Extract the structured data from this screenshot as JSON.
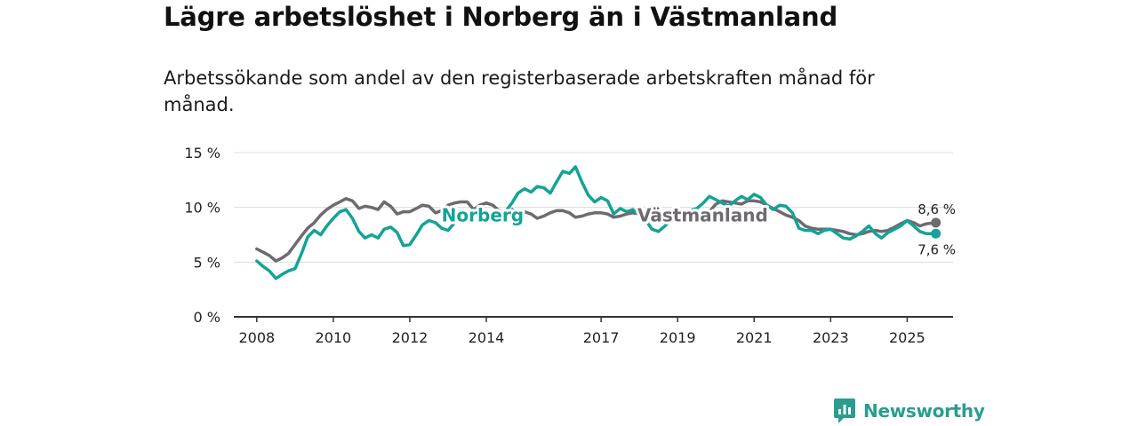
{
  "title": "Lägre arbetslöshet i Norberg än i Västmanland",
  "subtitle": "Arbetssökande som andel av den registerbaserade arbetskraften månad för månad.",
  "brand": {
    "name": "Newsworthy",
    "icon": "newsworthy-logo-icon",
    "color": "#2a9d8f"
  },
  "chart_data": {
    "type": "line",
    "title": "Lägre arbetslöshet i Norberg än i Västmanland",
    "xlabel": "",
    "ylabel": "",
    "xlim": [
      2007.4,
      2026.2
    ],
    "ylim": [
      0,
      15
    ],
    "y_ticks": [
      0,
      5,
      10,
      15
    ],
    "y_tick_labels": [
      "0 %",
      "5 %",
      "10 %",
      "15 %"
    ],
    "x_ticks": [
      2008,
      2010,
      2012,
      2014,
      2017,
      2019,
      2021,
      2023,
      2025
    ],
    "x_tick_labels": [
      "2008",
      "2010",
      "2012",
      "2014",
      "2017",
      "2019",
      "2021",
      "2023",
      "2025"
    ],
    "grid": true,
    "series": [
      {
        "name": "Västmanland",
        "color": "#6e6a70",
        "label": "Västmanland",
        "end_label": "8,6 %",
        "points": [
          [
            2008.0,
            6.2
          ],
          [
            2008.17,
            5.9
          ],
          [
            2008.33,
            5.6
          ],
          [
            2008.5,
            5.1
          ],
          [
            2008.67,
            5.4
          ],
          [
            2008.83,
            5.8
          ],
          [
            2009.0,
            6.6
          ],
          [
            2009.17,
            7.4
          ],
          [
            2009.33,
            8.1
          ],
          [
            2009.5,
            8.6
          ],
          [
            2009.67,
            9.3
          ],
          [
            2009.83,
            9.8
          ],
          [
            2010.0,
            10.2
          ],
          [
            2010.17,
            10.5
          ],
          [
            2010.33,
            10.8
          ],
          [
            2010.5,
            10.6
          ],
          [
            2010.67,
            9.9
          ],
          [
            2010.83,
            10.1
          ],
          [
            2011.0,
            10.0
          ],
          [
            2011.17,
            9.8
          ],
          [
            2011.33,
            10.5
          ],
          [
            2011.5,
            10.1
          ],
          [
            2011.67,
            9.4
          ],
          [
            2011.83,
            9.6
          ],
          [
            2012.0,
            9.6
          ],
          [
            2012.17,
            9.9
          ],
          [
            2012.33,
            10.2
          ],
          [
            2012.5,
            10.1
          ],
          [
            2012.67,
            9.5
          ],
          [
            2012.83,
            9.7
          ],
          [
            2013.0,
            10.2
          ],
          [
            2013.17,
            10.4
          ],
          [
            2013.33,
            10.5
          ],
          [
            2013.5,
            10.5
          ],
          [
            2013.67,
            9.8
          ],
          [
            2013.83,
            10.2
          ],
          [
            2014.0,
            10.4
          ],
          [
            2014.17,
            10.2
          ],
          [
            2014.33,
            9.7
          ],
          [
            2014.5,
            9.5
          ],
          [
            2014.67,
            9.8
          ],
          [
            2014.83,
            9.6
          ],
          [
            2015.0,
            9.6
          ],
          [
            2015.17,
            9.4
          ],
          [
            2015.33,
            9.0
          ],
          [
            2015.5,
            9.2
          ],
          [
            2015.67,
            9.5
          ],
          [
            2015.83,
            9.7
          ],
          [
            2016.0,
            9.7
          ],
          [
            2016.17,
            9.5
          ],
          [
            2016.33,
            9.1
          ],
          [
            2016.5,
            9.2
          ],
          [
            2016.67,
            9.4
          ],
          [
            2016.83,
            9.5
          ],
          [
            2017.0,
            9.5
          ],
          [
            2017.17,
            9.4
          ],
          [
            2017.33,
            9.1
          ],
          [
            2017.5,
            9.2
          ],
          [
            2017.67,
            9.4
          ],
          [
            2017.83,
            9.5
          ],
          [
            2018.0,
            9.4
          ],
          [
            2018.17,
            9.2
          ],
          [
            2018.33,
            9.0
          ],
          [
            2018.5,
            8.9
          ],
          [
            2018.67,
            8.8
          ],
          [
            2018.83,
            8.8
          ],
          [
            2019.0,
            8.9
          ],
          [
            2019.17,
            8.8
          ],
          [
            2019.33,
            8.6
          ],
          [
            2019.5,
            8.7
          ],
          [
            2019.67,
            9.1
          ],
          [
            2019.83,
            9.6
          ],
          [
            2020.0,
            10.3
          ],
          [
            2020.17,
            10.6
          ],
          [
            2020.33,
            10.5
          ],
          [
            2020.5,
            10.4
          ],
          [
            2020.67,
            10.3
          ],
          [
            2020.83,
            10.6
          ],
          [
            2021.0,
            10.6
          ],
          [
            2021.17,
            10.5
          ],
          [
            2021.33,
            10.2
          ],
          [
            2021.5,
            9.9
          ],
          [
            2021.67,
            9.6
          ],
          [
            2021.83,
            9.3
          ],
          [
            2022.0,
            9.1
          ],
          [
            2022.17,
            8.8
          ],
          [
            2022.33,
            8.3
          ],
          [
            2022.5,
            8.1
          ],
          [
            2022.67,
            8.0
          ],
          [
            2022.83,
            8.0
          ],
          [
            2023.0,
            8.0
          ],
          [
            2023.17,
            7.9
          ],
          [
            2023.33,
            7.8
          ],
          [
            2023.5,
            7.6
          ],
          [
            2023.67,
            7.5
          ],
          [
            2023.83,
            7.6
          ],
          [
            2024.0,
            7.8
          ],
          [
            2024.17,
            7.9
          ],
          [
            2024.33,
            7.8
          ],
          [
            2024.5,
            7.9
          ],
          [
            2024.67,
            8.2
          ],
          [
            2024.83,
            8.5
          ],
          [
            2025.0,
            8.8
          ],
          [
            2025.17,
            8.6
          ],
          [
            2025.33,
            8.3
          ],
          [
            2025.5,
            8.5
          ],
          [
            2025.75,
            8.6
          ]
        ]
      },
      {
        "name": "Norberg",
        "color": "#14a396",
        "label": "Norberg",
        "end_label": "7,6 %",
        "points": [
          [
            2008.0,
            5.1
          ],
          [
            2008.17,
            4.6
          ],
          [
            2008.33,
            4.2
          ],
          [
            2008.5,
            3.5
          ],
          [
            2008.67,
            3.9
          ],
          [
            2008.83,
            4.2
          ],
          [
            2009.0,
            4.4
          ],
          [
            2009.17,
            5.8
          ],
          [
            2009.33,
            7.3
          ],
          [
            2009.5,
            7.9
          ],
          [
            2009.67,
            7.5
          ],
          [
            2009.83,
            8.3
          ],
          [
            2010.0,
            9.0
          ],
          [
            2010.17,
            9.6
          ],
          [
            2010.33,
            9.8
          ],
          [
            2010.5,
            9.0
          ],
          [
            2010.67,
            7.8
          ],
          [
            2010.83,
            7.2
          ],
          [
            2011.0,
            7.5
          ],
          [
            2011.17,
            7.2
          ],
          [
            2011.33,
            8.0
          ],
          [
            2011.5,
            8.2
          ],
          [
            2011.67,
            7.7
          ],
          [
            2011.83,
            6.5
          ],
          [
            2012.0,
            6.6
          ],
          [
            2012.17,
            7.5
          ],
          [
            2012.33,
            8.4
          ],
          [
            2012.5,
            8.8
          ],
          [
            2012.67,
            8.6
          ],
          [
            2012.83,
            8.1
          ],
          [
            2013.0,
            7.9
          ],
          [
            2013.17,
            8.6
          ],
          [
            2013.33,
            9.0
          ],
          [
            2013.5,
            9.3
          ],
          [
            2013.67,
            9.8
          ],
          [
            2013.83,
            9.5
          ],
          [
            2014.0,
            9.6
          ],
          [
            2014.17,
            9.5
          ],
          [
            2014.33,
            9.3
          ],
          [
            2014.5,
            9.6
          ],
          [
            2014.67,
            10.4
          ],
          [
            2014.83,
            11.3
          ],
          [
            2015.0,
            11.7
          ],
          [
            2015.17,
            11.4
          ],
          [
            2015.33,
            11.9
          ],
          [
            2015.5,
            11.8
          ],
          [
            2015.67,
            11.3
          ],
          [
            2015.83,
            12.3
          ],
          [
            2016.0,
            13.3
          ],
          [
            2016.17,
            13.1
          ],
          [
            2016.33,
            13.7
          ],
          [
            2016.5,
            12.3
          ],
          [
            2016.67,
            11.1
          ],
          [
            2016.83,
            10.5
          ],
          [
            2017.0,
            10.9
          ],
          [
            2017.17,
            10.6
          ],
          [
            2017.33,
            9.4
          ],
          [
            2017.5,
            9.9
          ],
          [
            2017.67,
            9.6
          ],
          [
            2017.83,
            9.8
          ],
          [
            2018.0,
            9.3
          ],
          [
            2018.17,
            8.8
          ],
          [
            2018.33,
            8.0
          ],
          [
            2018.5,
            7.8
          ],
          [
            2018.67,
            8.3
          ],
          [
            2018.83,
            8.9
          ],
          [
            2019.0,
            9.1
          ],
          [
            2019.17,
            9.4
          ],
          [
            2019.33,
            9.7
          ],
          [
            2019.5,
            9.9
          ],
          [
            2019.67,
            10.4
          ],
          [
            2019.83,
            11.0
          ],
          [
            2020.0,
            10.7
          ],
          [
            2020.17,
            10.4
          ],
          [
            2020.33,
            10.1
          ],
          [
            2020.5,
            10.6
          ],
          [
            2020.67,
            11.0
          ],
          [
            2020.83,
            10.7
          ],
          [
            2021.0,
            11.2
          ],
          [
            2021.17,
            10.9
          ],
          [
            2021.33,
            10.2
          ],
          [
            2021.5,
            9.8
          ],
          [
            2021.67,
            10.2
          ],
          [
            2021.83,
            10.1
          ],
          [
            2022.0,
            9.5
          ],
          [
            2022.17,
            8.1
          ],
          [
            2022.33,
            7.9
          ],
          [
            2022.5,
            7.9
          ],
          [
            2022.67,
            7.6
          ],
          [
            2022.83,
            7.9
          ],
          [
            2023.0,
            8.0
          ],
          [
            2023.17,
            7.6
          ],
          [
            2023.33,
            7.2
          ],
          [
            2023.5,
            7.1
          ],
          [
            2023.67,
            7.4
          ],
          [
            2023.83,
            7.8
          ],
          [
            2024.0,
            8.3
          ],
          [
            2024.17,
            7.6
          ],
          [
            2024.33,
            7.2
          ],
          [
            2024.5,
            7.7
          ],
          [
            2024.67,
            8.0
          ],
          [
            2024.83,
            8.3
          ],
          [
            2025.0,
            8.8
          ],
          [
            2025.17,
            8.3
          ],
          [
            2025.33,
            7.8
          ],
          [
            2025.5,
            7.6
          ],
          [
            2025.75,
            7.6
          ]
        ]
      }
    ]
  }
}
